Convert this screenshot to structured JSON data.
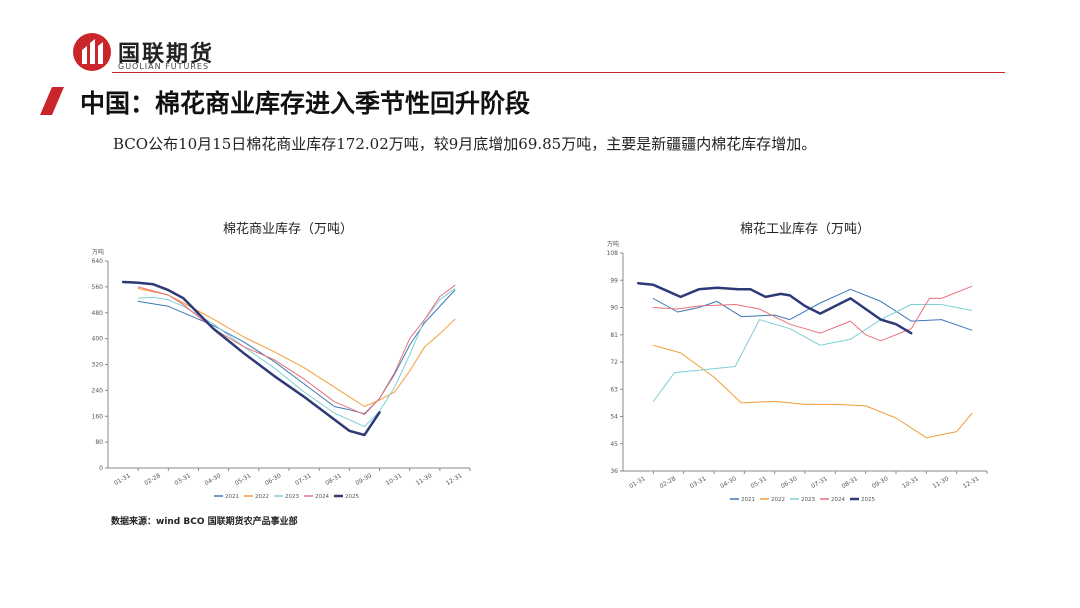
{
  "brand": {
    "name_cn": "国联期货",
    "name_en": "GUOLIAN FUTURES",
    "accent": "#c9252b"
  },
  "page": {
    "title": "中国：棉花商业库存进入季节性回升阶段",
    "subtitle": "BCO公布10月15日棉花商业库存172.02万吨，较9月底增加69.85万吨，主要是新疆疆内棉花库存增加。",
    "source": "数据来源：wind BCO 国联期货农产品事业部"
  },
  "chart_data": [
    {
      "type": "line",
      "title": "棉花商业库存（万吨）",
      "yunit": "万吨",
      "ylim": [
        0,
        640
      ],
      "yticks": [
        "0",
        "80",
        "160",
        "240",
        "320",
        "400",
        "480",
        "560",
        "640"
      ],
      "categories": [
        "01-31",
        "02-28",
        "03-31",
        "04-30",
        "05-31",
        "06-30",
        "07-31",
        "08-31",
        "09-30",
        "10-31",
        "11-30",
        "12-31"
      ],
      "grid": false,
      "legend_position": "bottom",
      "series": [
        {
          "name": "2021",
          "color": "#3d79b8",
          "width": 1,
          "points": [
            [
              0.5,
              515
            ],
            [
              1.5,
              500
            ],
            [
              2,
              480
            ],
            [
              3,
              440
            ],
            [
              4,
              390
            ],
            [
              5,
              330
            ],
            [
              6,
              260
            ],
            [
              7,
              190
            ],
            [
              7.5,
              180
            ],
            [
              8,
              168
            ],
            [
              8.5,
              215
            ],
            [
              9,
              290
            ],
            [
              9.5,
              380
            ],
            [
              10,
              450
            ],
            [
              11,
              550
            ]
          ]
        },
        {
          "name": "2022",
          "color": "#f39c3a",
          "width": 1,
          "points": [
            [
              0.5,
              555
            ],
            [
              1.5,
              535
            ],
            [
              2,
              510
            ],
            [
              3,
              460
            ],
            [
              4,
              405
            ],
            [
              5,
              360
            ],
            [
              6,
              310
            ],
            [
              7,
              250
            ],
            [
              8,
              190
            ],
            [
              8.5,
              210
            ],
            [
              9,
              235
            ],
            [
              9.5,
              300
            ],
            [
              10,
              375
            ],
            [
              10.5,
              415
            ],
            [
              11,
              460
            ]
          ]
        },
        {
          "name": "2023",
          "color": "#7fd0d4",
          "width": 1,
          "points": [
            [
              0.5,
              525
            ],
            [
              1,
              528
            ],
            [
              1.5,
              520
            ],
            [
              2,
              500
            ],
            [
              3,
              445
            ],
            [
              4,
              375
            ],
            [
              5,
              310
            ],
            [
              6,
              235
            ],
            [
              7,
              170
            ],
            [
              8,
              128
            ],
            [
              8.5,
              175
            ],
            [
              9,
              250
            ],
            [
              9.5,
              350
            ],
            [
              10,
              460
            ],
            [
              10.5,
              520
            ],
            [
              11,
              555
            ]
          ]
        },
        {
          "name": "2024",
          "color": "#e8717a",
          "width": 1,
          "points": [
            [
              0.5,
              560
            ],
            [
              1.5,
              535
            ],
            [
              2,
              505
            ],
            [
              3,
              430
            ],
            [
              4,
              375
            ],
            [
              5,
              335
            ],
            [
              6,
              275
            ],
            [
              7,
              205
            ],
            [
              8,
              165
            ],
            [
              8.5,
              215
            ],
            [
              9,
              295
            ],
            [
              9.5,
              400
            ],
            [
              10,
              460
            ],
            [
              10.5,
              530
            ],
            [
              11,
              565
            ]
          ]
        },
        {
          "name": "2025",
          "color": "#2e3a78",
          "width": 2.5,
          "points": [
            [
              0,
              575
            ],
            [
              0.5,
              573
            ],
            [
              1,
              568
            ],
            [
              1.5,
              550
            ],
            [
              2,
              525
            ],
            [
              3,
              430
            ],
            [
              4,
              355
            ],
            [
              5,
              285
            ],
            [
              6,
              220
            ],
            [
              7,
              150
            ],
            [
              7.5,
              115
            ],
            [
              8,
              102
            ],
            [
              8.5,
              172
            ]
          ]
        }
      ]
    },
    {
      "type": "line",
      "title": "棉花工业库存（万吨）",
      "yunit": "万吨",
      "ylim": [
        36,
        108
      ],
      "yticks": [
        "36",
        "45",
        "54",
        "63",
        "72",
        "81",
        "90",
        "99",
        "108"
      ],
      "categories": [
        "01-31",
        "02-28",
        "03-31",
        "04-30",
        "05-31",
        "06-30",
        "07-31",
        "08-31",
        "09-30",
        "10-31",
        "11-30",
        "12-31"
      ],
      "grid": false,
      "legend_position": "bottom",
      "series": [
        {
          "name": "2021",
          "color": "#3d79b8",
          "width": 1,
          "points": [
            [
              0.5,
              93
            ],
            [
              1.3,
              88.5
            ],
            [
              2,
              90
            ],
            [
              2.6,
              92
            ],
            [
              3.4,
              87
            ],
            [
              4.5,
              87.5
            ],
            [
              5,
              86
            ],
            [
              6,
              91.5
            ],
            [
              7,
              96
            ],
            [
              8,
              92
            ],
            [
              9,
              85.5
            ],
            [
              10,
              86
            ],
            [
              11,
              82.5
            ]
          ]
        },
        {
          "name": "2022",
          "color": "#f39c3a",
          "width": 1,
          "points": [
            [
              0.5,
              77.5
            ],
            [
              1.4,
              75
            ],
            [
              2.5,
              67
            ],
            [
              3.4,
              58.5
            ],
            [
              4.5,
              59
            ],
            [
              5.5,
              58
            ],
            [
              6.5,
              58
            ],
            [
              7.5,
              57.5
            ],
            [
              8.5,
              53.5
            ],
            [
              9.5,
              47
            ],
            [
              10.5,
              49
            ],
            [
              11,
              55
            ]
          ]
        },
        {
          "name": "2023",
          "color": "#7fd0d4",
          "width": 1,
          "points": [
            [
              0.5,
              59
            ],
            [
              1.2,
              68.5
            ],
            [
              2.2,
              69.5
            ],
            [
              3.2,
              70.5
            ],
            [
              4,
              86
            ],
            [
              5,
              83
            ],
            [
              6,
              77.5
            ],
            [
              7,
              79.5
            ],
            [
              8,
              86
            ],
            [
              9,
              91
            ],
            [
              10,
              91
            ],
            [
              11,
              89
            ]
          ]
        },
        {
          "name": "2024",
          "color": "#e8717a",
          "width": 1,
          "points": [
            [
              0.5,
              90
            ],
            [
              1.3,
              89.5
            ],
            [
              2,
              90.5
            ],
            [
              3.2,
              91
            ],
            [
              4,
              89.5
            ],
            [
              5,
              84.5
            ],
            [
              6,
              81.5
            ],
            [
              7,
              85.5
            ],
            [
              7.5,
              81
            ],
            [
              8,
              79
            ],
            [
              9,
              83
            ],
            [
              9.6,
              93
            ],
            [
              10,
              93
            ],
            [
              11,
              97
            ]
          ]
        },
        {
          "name": "2025",
          "color": "#2e3a78",
          "width": 2.5,
          "points": [
            [
              0,
              98
            ],
            [
              0.5,
              97.5
            ],
            [
              1.4,
              93.5
            ],
            [
              2,
              96
            ],
            [
              2.6,
              96.5
            ],
            [
              3.3,
              96
            ],
            [
              3.7,
              96
            ],
            [
              4.2,
              93.5
            ],
            [
              4.7,
              94.5
            ],
            [
              5,
              94
            ],
            [
              5.5,
              90.5
            ],
            [
              6,
              88
            ],
            [
              6.5,
              90.5
            ],
            [
              7,
              93
            ],
            [
              7.5,
              89.5
            ],
            [
              8,
              86
            ],
            [
              8.5,
              84.5
            ],
            [
              9,
              81.5
            ]
          ]
        }
      ]
    }
  ]
}
